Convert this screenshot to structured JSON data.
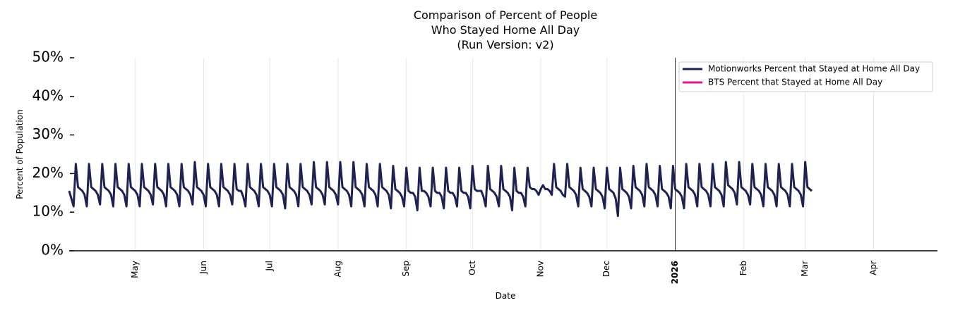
{
  "chart_data": {
    "type": "line",
    "title_lines": [
      "Comparison of Percent of People",
      "Who Stayed Home All Day",
      "(Run Version: v2)"
    ],
    "xlabel": "Date",
    "ylabel": "Percent of Population",
    "x_range": [
      "2025-04-01",
      "2026-04-30"
    ],
    "ylim": [
      0,
      50
    ],
    "yticks": [
      "0%",
      "10%",
      "20%",
      "30%",
      "40%",
      "50%"
    ],
    "xticks": [
      {
        "label": "May",
        "date": "2025-05-01",
        "bold": false
      },
      {
        "label": "Jun",
        "date": "2025-06-01",
        "bold": false
      },
      {
        "label": "Jul",
        "date": "2025-07-01",
        "bold": false
      },
      {
        "label": "Aug",
        "date": "2025-08-01",
        "bold": false
      },
      {
        "label": "Sep",
        "date": "2025-09-01",
        "bold": false
      },
      {
        "label": "Oct",
        "date": "2025-10-01",
        "bold": false
      },
      {
        "label": "Nov",
        "date": "2025-11-01",
        "bold": false
      },
      {
        "label": "Dec",
        "date": "2025-12-01",
        "bold": false
      },
      {
        "label": "2026",
        "date": "2026-01-01",
        "bold": true
      },
      {
        "label": "Feb",
        "date": "2026-02-01",
        "bold": false
      },
      {
        "label": "Mar",
        "date": "2026-03-01",
        "bold": false
      },
      {
        "label": "Apr",
        "date": "2026-04-01",
        "bold": false
      }
    ],
    "vertical_line_date": "2026-01-01",
    "grid": "vertical",
    "legend_position": "top-right",
    "series": [
      {
        "name": "Motionworks Percent that Stayed at Home All Day",
        "color": "#1f2150",
        "start_date": "2025-04-01",
        "values": [
          15.5,
          13.5,
          11.5,
          22.5,
          16.5,
          16,
          15.5,
          14.5,
          11.5,
          22.5,
          16.5,
          16,
          15.5,
          14.5,
          12,
          22.5,
          16.5,
          16,
          15.5,
          14.5,
          11.5,
          22.5,
          16.5,
          16,
          15.5,
          14.5,
          11.5,
          22.5,
          16.5,
          16,
          15.5,
          14.5,
          11.5,
          22.5,
          16.5,
          16,
          15.5,
          14.5,
          12,
          22.5,
          16.5,
          16,
          15.5,
          14.5,
          11.5,
          22.5,
          16.5,
          16,
          15.5,
          14.5,
          11.5,
          22.5,
          16.5,
          16,
          15.5,
          14.5,
          12,
          23,
          16.5,
          16,
          15.5,
          14.5,
          11.5,
          22.5,
          16.5,
          16,
          15.5,
          14.5,
          11.5,
          22.5,
          16.5,
          16,
          15.5,
          14.5,
          12,
          22.5,
          16,
          15.5,
          15.5,
          14,
          11.5,
          22.5,
          16.5,
          16,
          15.5,
          14.5,
          11.5,
          22.5,
          16.5,
          16,
          15.5,
          14.5,
          11.5,
          22.5,
          16.5,
          16,
          15.5,
          14.5,
          11,
          22.5,
          16.5,
          16,
          15.5,
          14.5,
          11.5,
          22.5,
          16.5,
          16,
          15.5,
          14.5,
          12,
          23,
          16.5,
          16,
          15.5,
          14.5,
          12,
          23,
          16.5,
          16,
          15.5,
          14.5,
          12,
          23,
          16.5,
          16,
          15.5,
          14.5,
          11.5,
          23,
          16.5,
          16,
          15.5,
          14.5,
          11.5,
          22.5,
          16.5,
          16,
          15.5,
          14.5,
          11.5,
          22.5,
          16.5,
          16,
          15.5,
          14.5,
          11,
          22,
          16,
          15.5,
          15,
          14,
          11.5,
          21.5,
          15.5,
          15,
          15,
          14,
          10.5,
          21.5,
          15.5,
          15.5,
          15,
          14,
          11.5,
          21.5,
          15.5,
          15,
          15,
          14,
          11,
          21.5,
          15.5,
          15,
          15,
          14,
          11.5,
          21.5,
          15.5,
          15,
          15,
          14,
          11,
          22,
          16,
          15.5,
          15.5,
          15.5,
          14,
          11.5,
          22,
          16,
          15.5,
          15,
          14,
          11.5,
          22,
          16,
          15.5,
          15,
          14,
          10.5,
          21.5,
          15.5,
          15,
          15,
          14,
          11.5,
          21.5,
          16.5,
          16,
          16,
          15.5,
          14.5,
          16,
          17,
          16,
          16,
          15.5,
          14.5,
          22.5,
          16.5,
          16,
          15.5,
          14.5,
          14,
          22.5,
          16.5,
          16,
          15.5,
          14.5,
          11.5,
          21.5,
          16,
          15.5,
          15,
          14,
          11.5,
          21.5,
          16,
          15.5,
          15,
          14,
          11,
          21.5,
          16,
          15.5,
          15,
          13.5,
          9,
          21.5,
          16,
          15.5,
          15,
          14,
          11,
          22,
          16.5,
          16,
          15.5,
          14.5,
          11.5,
          22.5,
          16.5,
          16,
          15.5,
          14.5,
          11.5,
          22,
          16,
          15.5,
          15,
          14,
          11,
          22,
          16,
          15.5,
          15,
          14,
          11,
          22.5,
          16.5,
          16,
          15.5,
          14.5,
          11.5,
          22.5,
          16.5,
          16,
          15.5,
          14.5,
          11.5,
          22.5,
          16.5,
          16,
          15.5,
          14.5,
          11.5,
          23,
          17,
          16.5,
          16,
          15,
          12,
          23,
          16.5,
          16,
          15.5,
          14.5,
          12,
          22.5,
          16.5,
          16,
          15.5,
          14.5,
          11.5,
          22.5,
          16.5,
          16,
          15.5,
          14.5,
          11.5,
          22.5,
          16.5,
          16,
          15.5,
          14.5,
          11.5,
          22.5,
          16.5,
          16,
          15.5,
          14.5,
          11.5,
          23,
          16.5,
          16,
          15.5
        ]
      },
      {
        "name": "BTS Percent that Stayed at Home All Day",
        "color": "#d81b8c",
        "start_date": "2025-04-01",
        "values": []
      }
    ]
  }
}
